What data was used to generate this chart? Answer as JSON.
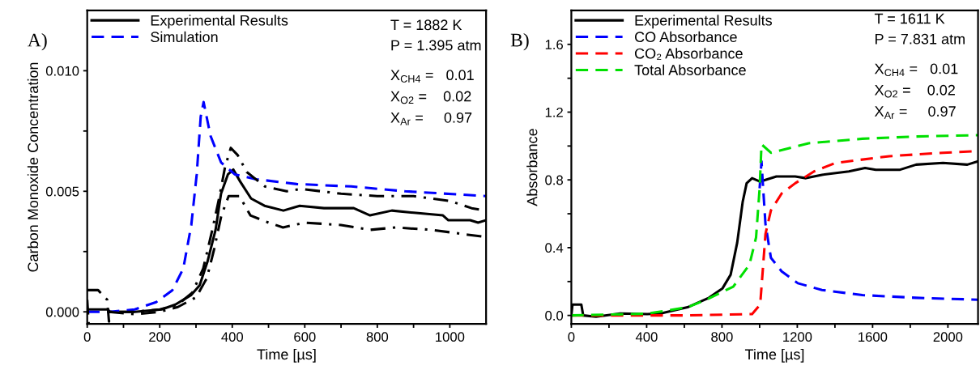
{
  "chart_data": [
    {
      "type": "line",
      "xlabel": "Time [µs]",
      "ylabel": "Carbon Monoxide Concentration",
      "annotations": [
        "A)",
        "T = 1882 K",
        "P = 1.395 atm",
        "X$_{CH4}$ =   0.01",
        "X$_{O2}$ =    0.02",
        "X$_{Ar}$ =     0.97"
      ],
      "xlim": [
        0,
        1100
      ],
      "ylim": [
        -0.0005,
        0.0125
      ],
      "xticks": [
        0,
        {
          "value": 100,
          "label": null
        },
        200,
        {
          "value": 300,
          "label": null
        },
        400,
        {
          "value": 500,
          "label": null
        },
        600,
        {
          "value": 700,
          "label": null
        },
        800,
        {
          "value": 900,
          "label": null
        },
        1000
      ],
      "yticks": [
        {
          "value": 0,
          "label": "0.000"
        },
        {
          "value": 0.0025,
          "label": null
        },
        {
          "value": 0.005,
          "label": "0.005"
        },
        {
          "value": 0.0075,
          "label": null
        },
        {
          "value": 0.01,
          "label": "0.010"
        }
      ],
      "legend": "top left",
      "grid": false,
      "series": [
        {
          "name": "Experimental Results",
          "color": "#000000",
          "line_style": "solid",
          "x": [
            0,
            56,
            63,
            131,
            205,
            243,
            287,
            310,
            332,
            354,
            369,
            388,
            403,
            422,
            452,
            489,
            541,
            586,
            653,
            735,
            780,
            840,
            907,
            981,
            996,
            1056,
            1078,
            1100
          ],
          "values": [
            0.0001,
            0.0001,
            0,
            0,
            0.0001,
            0.0003,
            0.0007,
            0.0011,
            0.0021,
            0.0034,
            0.0049,
            0.0057,
            0.0059,
            0.0054,
            0.0047,
            0.0044,
            0.0042,
            0.0044,
            0.0043,
            0.0043,
            0.004,
            0.0042,
            0.0041,
            0.004,
            0.0038,
            0.0038,
            0.0037,
            0.0038
          ]
        },
        {
          "name": "Simulation",
          "color": "#0000ff",
          "line_style": "dashed",
          "x": [
            0,
            63,
            131,
            190,
            235,
            265,
            287,
            302,
            313,
            321,
            340,
            369,
            407,
            466,
            578,
            728,
            877,
            1100
          ],
          "values": [
            0,
            0,
            0.0001,
            0.0004,
            0.0009,
            0.0018,
            0.0036,
            0.0057,
            0.0081,
            0.0087,
            0.0073,
            0.0062,
            0.0057,
            0.0055,
            0.0053,
            0.0052,
            0.005,
            0.0048
          ]
        },
        {
          "color": "#000000",
          "line_style": "dashdot",
          "x": [
            0,
            30,
            55,
            60,
            65,
            130,
            200,
            250,
            290,
            320,
            345,
            365,
            380,
            396,
            415,
            440,
            490,
            550,
            590,
            700,
            800,
            900,
            1000,
            1060,
            1100
          ],
          "values": [
            0.0009,
            0.0009,
            0.0005,
            -0.0004,
            0,
            0,
            0.0001,
            0.0003,
            0.0008,
            0.0018,
            0.0034,
            0.0048,
            0.006,
            0.0068,
            0.0065,
            0.0058,
            0.0052,
            0.005,
            0.0051,
            0.0049,
            0.0048,
            0.0048,
            0.0046,
            0.0043,
            0.0042
          ]
        },
        {
          "color": "#000000",
          "line_style": "dashdot",
          "x": [
            0,
            4,
            30,
            60,
            130,
            200,
            250,
            300,
            330,
            350,
            370,
            390,
            420,
            450,
            500,
            540,
            600,
            700,
            780,
            850,
            950,
            1000,
            1050,
            1100
          ],
          "values": [
            0.0005,
            -0.0005,
            null,
            0,
            -0.0001,
            0,
            0.0002,
            0.0006,
            0.0014,
            0.0026,
            0.004,
            0.0048,
            0.0048,
            0.004,
            0.0037,
            0.0035,
            0.0037,
            0.0036,
            0.0034,
            0.0035,
            0.0034,
            0.0033,
            0.0032,
            0.0031
          ]
        }
      ]
    },
    {
      "type": "line",
      "xlabel": "Time [µs]",
      "ylabel": "Absorbance",
      "annotations": [
        "B)",
        "T = 1611 K",
        "P = 7.831 atm",
        "X$_{CH4}$ =   0.01",
        "X$_{O2}$ =    0.02",
        "X$_{Ar}$ =     0.97"
      ],
      "xlim": [
        0,
        2160
      ],
      "ylim": [
        -0.05,
        1.8
      ],
      "xticks": [
        0,
        {
          "value": 200,
          "label": null
        },
        400,
        {
          "value": 600,
          "label": null
        },
        800,
        {
          "value": 1000,
          "label": null
        },
        1200,
        {
          "value": 1400,
          "label": null
        },
        1600,
        {
          "value": 1800,
          "label": null
        },
        2000
      ],
      "yticks": [
        {
          "value": 0,
          "label": "0.0"
        },
        {
          "value": 0.2,
          "label": null
        },
        {
          "value": 0.4,
          "label": "0.4"
        },
        {
          "value": 0.6,
          "label": null
        },
        {
          "value": 0.8,
          "label": "0.8"
        },
        {
          "value": 1.0,
          "label": null
        },
        {
          "value": 1.2,
          "label": "1.2"
        },
        {
          "value": 1.4,
          "label": null
        },
        {
          "value": 1.6,
          "label": "1.6"
        }
      ],
      "legend": "top left",
      "grid": false,
      "series": [
        {
          "name": "Experimental Results",
          "color": "#000000",
          "line_style": "solid",
          "x": [
            0,
            6,
            53,
            63,
            131,
            260,
            403,
            474,
            617,
            731,
            803,
            846,
            881,
            910,
            931,
            960,
            1003,
            1089,
            1189,
            1246,
            1331,
            1474,
            1560,
            1617,
            1746,
            1831,
            1974,
            2103,
            2160
          ],
          "values": [
            0,
            0.064,
            0.064,
            0,
            -0.008,
            0.011,
            0.008,
            0.011,
            0.048,
            0.104,
            0.16,
            0.24,
            0.43,
            0.67,
            0.78,
            0.81,
            0.79,
            0.82,
            0.82,
            0.81,
            0.83,
            0.85,
            0.87,
            0.86,
            0.86,
            0.89,
            0.9,
            0.89,
            0.91
          ]
        },
        {
          "name": "CO Absorbance",
          "color": "#0000ff",
          "line_style": "dashed",
          "x": [
            1000,
            1010,
            1017,
            1031,
            1060,
            1117,
            1203,
            1331,
            1546,
            1831,
            2160
          ],
          "values": [
            0.75,
            0.91,
            0.78,
            0.54,
            0.34,
            0.26,
            0.19,
            0.15,
            0.12,
            0.104,
            0.093
          ]
        },
        {
          "name": "CO₂ Absorbance",
          "color": "#ff0000",
          "line_style": "dashed",
          "x": [
            0,
            400,
            600,
            960,
            1003,
            1017,
            1031,
            1060,
            1117,
            1189,
            1289,
            1403,
            1689,
            1974,
            2160
          ],
          "values": [
            0,
            0,
            0,
            0.008,
            0.064,
            0.27,
            0.48,
            0.62,
            0.72,
            0.78,
            0.85,
            0.9,
            0.94,
            0.96,
            0.97
          ]
        },
        {
          "name": "Total Absorbance",
          "color": "#00e000",
          "line_style": "dashed",
          "x": [
            0,
            400,
            617,
            731,
            860,
            946,
            981,
            1000,
            1010,
            1060,
            1260,
            1546,
            1831,
            2160
          ],
          "values": [
            0,
            0.01,
            0.048,
            0.1,
            0.17,
            0.3,
            0.46,
            0.75,
            1.01,
            0.96,
            1.016,
            1.043,
            1.056,
            1.064
          ]
        }
      ]
    }
  ]
}
